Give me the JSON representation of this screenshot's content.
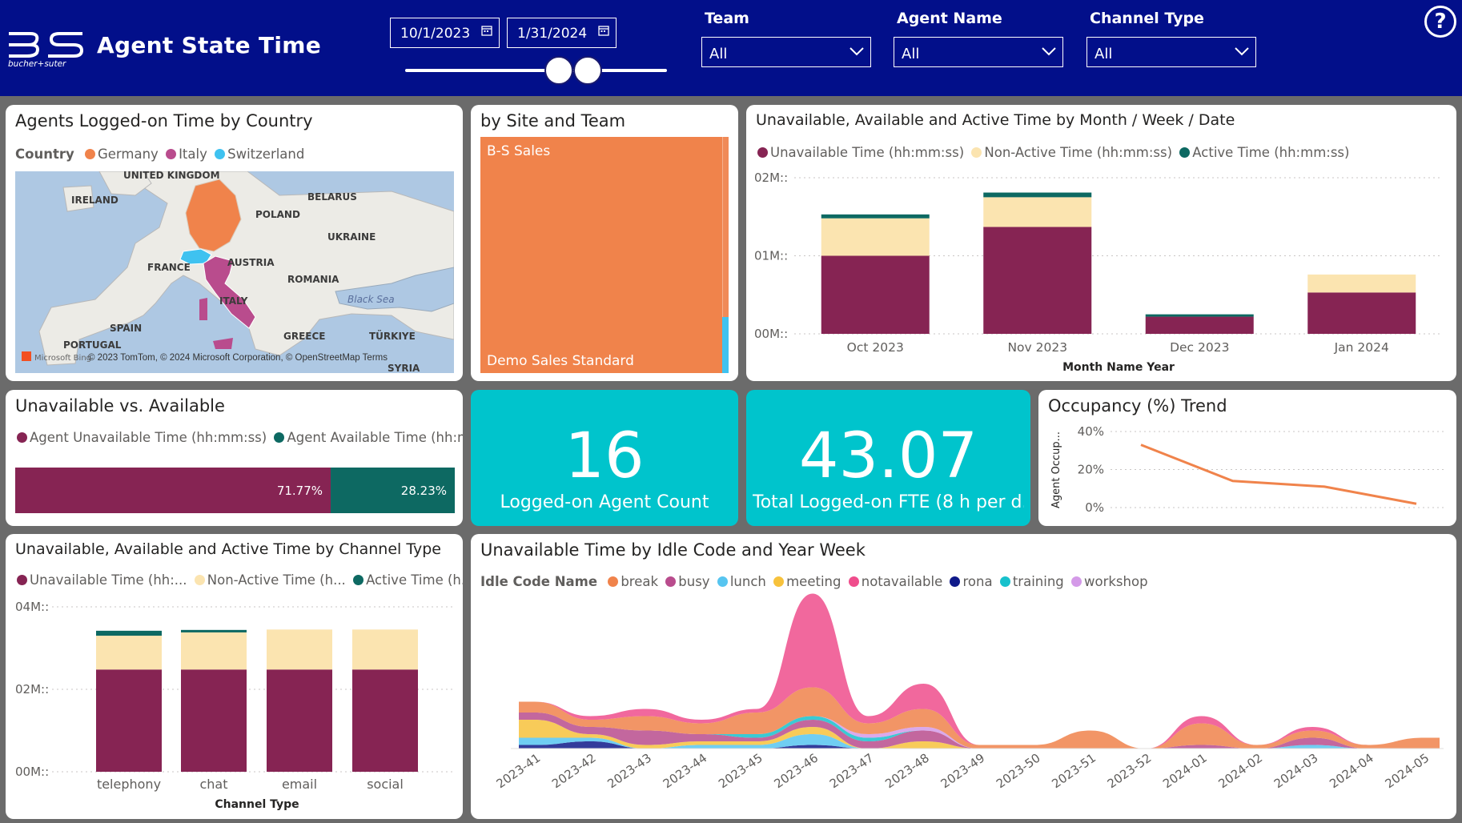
{
  "header": {
    "title": "Agent State Time",
    "logo_text": "bucher+suter",
    "date_from": "10/1/2023",
    "date_to": "1/31/2024",
    "slicers": [
      {
        "label": "Team",
        "value": "All"
      },
      {
        "label": "Agent Name",
        "value": "All"
      },
      {
        "label": "Channel Type",
        "value": "All"
      }
    ],
    "help": "?"
  },
  "map_card": {
    "title": "Agents Logged-on Time by Country",
    "legend_title": "Country",
    "legend": [
      {
        "name": "Germany",
        "color": "#f0834b"
      },
      {
        "name": "Italy",
        "color": "#b94c8d"
      },
      {
        "name": "Switzerland",
        "color": "#3fc2f0"
      }
    ],
    "labels": [
      "UNITED KINGDOM",
      "IRELAND",
      "BELARUS",
      "POLAND",
      "UKRAINE",
      "FRANCE",
      "AUSTRIA",
      "ROMANIA",
      "Black Sea",
      "ITALY",
      "SPAIN",
      "GREECE",
      "TÜRKIYE",
      "PORTUGAL",
      "SYRIA"
    ],
    "attribution": "© 2023 TomTom, © 2024 Microsoft Corporation, © OpenStreetMap  Terms",
    "brand": "Microsoft Bing"
  },
  "treemap_card": {
    "title": "by Site and Team",
    "top_label": "B-S Sales",
    "bottom_label": "Demo Sales Standard",
    "color": "#f0834b"
  },
  "month_chart": {
    "title": "Unavailable, Available and Active Time by Month / Week / Date",
    "chart_data": {
      "type": "bar",
      "stacked": true,
      "title": "Unavailable, Available and Active Time by Month / Week / Date",
      "xlabel": "Month Name Year",
      "ylabel": "",
      "categories": [
        "Oct 2023",
        "Nov 2023",
        "Dec 2023",
        "Jan 2024"
      ],
      "yticks": [
        "00M::",
        "01M::",
        "02M::"
      ],
      "ylim": [
        0,
        2
      ],
      "series": [
        {
          "name": "Unavailable Time (hh:mm:ss)",
          "color": "#862453",
          "values": [
            1.0,
            1.37,
            0.22,
            0.53
          ]
        },
        {
          "name": "Non-Active Time (hh:mm:ss)",
          "color": "#fbe4b0",
          "values": [
            0.48,
            0.38,
            0.0,
            0.23
          ]
        },
        {
          "name": "Active Time (hh:mm:ss)",
          "color": "#0d6962",
          "values": [
            0.05,
            0.06,
            0.03,
            0.0
          ]
        }
      ]
    }
  },
  "unavail_card": {
    "title": "Unavailable vs. Available",
    "legend": [
      {
        "name": "Agent Unavailable Time (hh:mm:ss)",
        "color": "#862453"
      },
      {
        "name": "Agent Available Time (hh:m...",
        "color": "#0d6962"
      }
    ],
    "chart_data": {
      "type": "bar",
      "orientation": "horizontal-100-percent",
      "title": "Unavailable vs. Available",
      "series": [
        {
          "name": "Agent Unavailable Time (hh:mm:ss)",
          "value": 71.77,
          "label": "71.77%",
          "color": "#862453"
        },
        {
          "name": "Agent Available Time (hh:mm:ss)",
          "value": 28.23,
          "label": "28.23%",
          "color": "#0d6962"
        }
      ]
    }
  },
  "kpi_agents": {
    "value": "16",
    "label": "Logged-on Agent Count"
  },
  "kpi_fte": {
    "value": "43.07",
    "label": "Total Logged-on FTE (8 h per d..."
  },
  "occupancy_card": {
    "title": "Occupancy (%) Trend",
    "chart_data": {
      "type": "line",
      "title": "Occupancy (%) Trend",
      "ylabel": "Agent Occup...",
      "yticks": [
        "0%",
        "20%",
        "40%"
      ],
      "ylim": [
        0,
        40
      ],
      "x": [
        1,
        2,
        3,
        4
      ],
      "values": [
        33,
        14,
        11,
        2
      ],
      "color": "#f0834b"
    }
  },
  "channel_chart": {
    "title": "Unavailable, Available and Active Time by Channel Type",
    "legend": [
      {
        "name": "Unavailable Time (hh:...",
        "color": "#862453"
      },
      {
        "name": "Non-Active Time (h...",
        "color": "#fbe4b0"
      },
      {
        "name": "Active Time (h...",
        "color": "#0d6962"
      }
    ],
    "chart_data": {
      "type": "bar",
      "stacked": true,
      "title": "Unavailable, Available and Active Time by Channel Type",
      "xlabel": "Channel Type",
      "categories": [
        "telephony",
        "chat",
        "email",
        "social"
      ],
      "yticks": [
        "00M::",
        "02M::",
        "04M::"
      ],
      "ylim": [
        0,
        4
      ],
      "series": [
        {
          "name": "Unavailable Time (hh:mm:ss)",
          "color": "#862453",
          "values": [
            2.48,
            2.48,
            2.48,
            2.48
          ]
        },
        {
          "name": "Non-Active Time (hh:mm:ss)",
          "color": "#fbe4b0",
          "values": [
            0.82,
            0.9,
            0.97,
            0.97
          ]
        },
        {
          "name": "Active Time (hh:mm:ss)",
          "color": "#0d6962",
          "values": [
            0.12,
            0.06,
            0.0,
            0.0
          ]
        }
      ]
    }
  },
  "idle_chart": {
    "title": "Unavailable Time by Idle Code and Year Week",
    "legend_title": "Idle Code Name",
    "legend": [
      {
        "name": "break",
        "color": "#f0834b"
      },
      {
        "name": "busy",
        "color": "#b94c8d"
      },
      {
        "name": "lunch",
        "color": "#57c5f0"
      },
      {
        "name": "meeting",
        "color": "#f7c23c"
      },
      {
        "name": "notavailable",
        "color": "#ef4d8c"
      },
      {
        "name": "rona",
        "color": "#0f1a8a"
      },
      {
        "name": "training",
        "color": "#17c1cc"
      },
      {
        "name": "workshop",
        "color": "#d49ae8"
      }
    ],
    "chart_data": {
      "type": "area",
      "stacked": true,
      "title": "Unavailable Time by Idle Code and Year Week",
      "x": [
        "2023-41",
        "2023-42",
        "2023-43",
        "2023-44",
        "2023-45",
        "2023-46",
        "2023-47",
        "2023-48",
        "2023-49",
        "2023-50",
        "2023-51",
        "2023-52",
        "2024-01",
        "2024-02",
        "2024-03",
        "2024-04",
        "2024-05"
      ],
      "series": [
        {
          "name": "break",
          "values": [
            3,
            2,
            4,
            3,
            6,
            8,
            3,
            5,
            1,
            1,
            5,
            0,
            6,
            1,
            2,
            1,
            3
          ]
        },
        {
          "name": "busy",
          "values": [
            2,
            2,
            4,
            2,
            1,
            2,
            2,
            3,
            0,
            0,
            0,
            0,
            1,
            0,
            2,
            0,
            0
          ]
        },
        {
          "name": "lunch",
          "values": [
            2,
            1,
            0,
            1,
            1,
            3,
            0,
            0,
            0,
            0,
            0,
            0,
            0,
            0,
            1,
            0,
            0
          ]
        },
        {
          "name": "meeting",
          "values": [
            5,
            1,
            1,
            1,
            1,
            2,
            0,
            2,
            0,
            0,
            0,
            0,
            0,
            0,
            0,
            0,
            0
          ]
        },
        {
          "name": "notavailable",
          "values": [
            0,
            1,
            2,
            1,
            1,
            26,
            2,
            7,
            0,
            0,
            0,
            0,
            2,
            0,
            1,
            0,
            0
          ]
        },
        {
          "name": "rona",
          "values": [
            1,
            2,
            0,
            0,
            0,
            1,
            0,
            0,
            0,
            0,
            0,
            0,
            0,
            0,
            0,
            0,
            0
          ]
        },
        {
          "name": "training",
          "values": [
            0,
            0,
            0,
            0,
            1,
            1,
            1,
            0,
            0,
            0,
            0,
            0,
            0,
            0,
            0,
            0,
            0
          ]
        },
        {
          "name": "workshop",
          "values": [
            0,
            0,
            0,
            0,
            0,
            0,
            1,
            1,
            0,
            0,
            0,
            0,
            0,
            0,
            0,
            0,
            0
          ]
        }
      ]
    }
  }
}
